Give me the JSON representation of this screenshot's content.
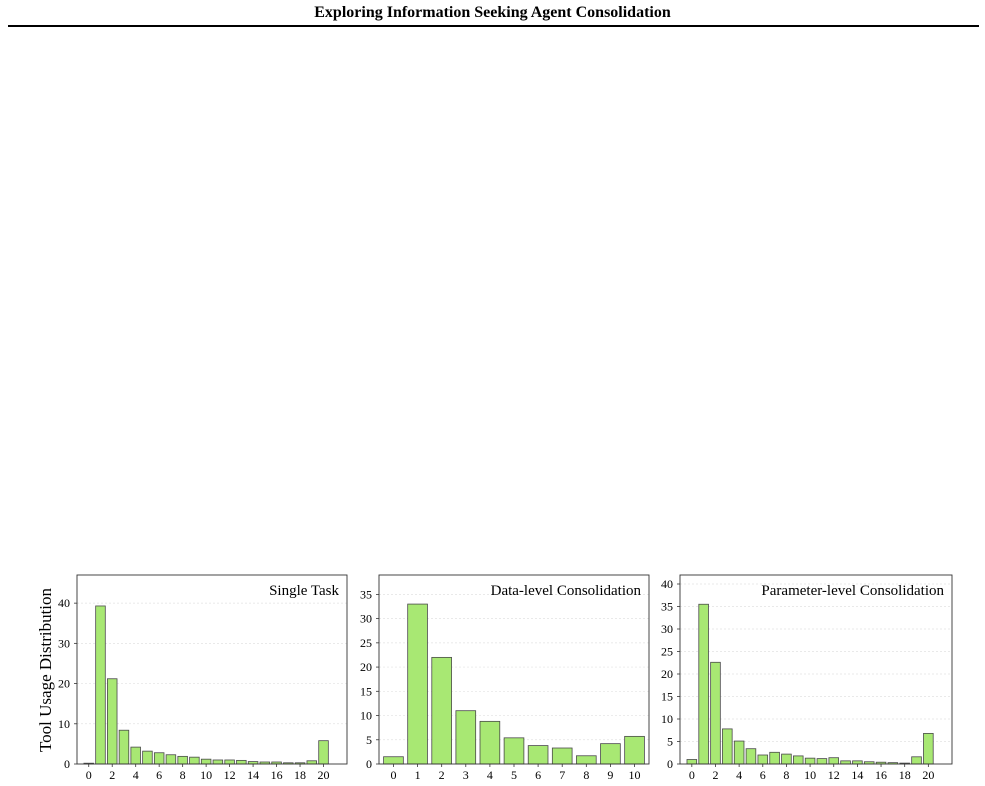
{
  "header": {
    "title": "Exploring Information Seeking Agent Consolidation"
  },
  "chart_data": [
    {
      "type": "bar",
      "title": "Single Task",
      "ylabel": "Tool Usage Distribution",
      "xlabel": "",
      "bar_color": "#a8e873",
      "bar_edge": "#4a4a4a",
      "grid": true,
      "legend": "none",
      "ylim": [
        0,
        47
      ],
      "yticks": [
        0,
        10,
        20,
        30,
        40
      ],
      "xlim": [
        -1,
        22
      ],
      "xticks": [
        0,
        2,
        4,
        6,
        8,
        10,
        12,
        14,
        16,
        18,
        20
      ],
      "categories": [
        0,
        1,
        2,
        3,
        4,
        5,
        6,
        7,
        8,
        9,
        10,
        11,
        12,
        13,
        14,
        15,
        16,
        17,
        18,
        19,
        20
      ],
      "values": [
        0.2,
        39.3,
        21.2,
        8.4,
        4.2,
        3.2,
        2.8,
        2.3,
        1.9,
        1.7,
        1.2,
        1.0,
        1.0,
        0.9,
        0.6,
        0.5,
        0.5,
        0.3,
        0.3,
        0.8,
        5.8
      ]
    },
    {
      "type": "bar",
      "title": "Data-level Consolidation",
      "ylabel": "",
      "xlabel": "",
      "bar_color": "#a8e873",
      "bar_edge": "#4a4a4a",
      "grid": true,
      "legend": "none",
      "ylim": [
        0,
        39
      ],
      "yticks": [
        0,
        5,
        10,
        15,
        20,
        25,
        30,
        35
      ],
      "xlim": [
        -0.6,
        10.6
      ],
      "xticks": [
        0,
        1,
        2,
        3,
        4,
        5,
        6,
        7,
        8,
        9,
        10
      ],
      "categories": [
        0,
        1,
        2,
        3,
        4,
        5,
        6,
        7,
        8,
        9,
        10
      ],
      "values": [
        1.5,
        33.0,
        22.0,
        11.0,
        8.8,
        5.4,
        3.8,
        3.3,
        1.7,
        4.2,
        5.7
      ]
    },
    {
      "type": "bar",
      "title": "Parameter-level Consolidation",
      "ylabel": "",
      "xlabel": "",
      "bar_color": "#a8e873",
      "bar_edge": "#4a4a4a",
      "grid": true,
      "legend": "none",
      "ylim": [
        0,
        42
      ],
      "yticks": [
        0,
        5,
        10,
        15,
        20,
        25,
        30,
        35,
        40
      ],
      "xlim": [
        -1,
        22
      ],
      "xticks": [
        0,
        2,
        4,
        6,
        8,
        10,
        12,
        14,
        16,
        18,
        20
      ],
      "categories": [
        0,
        1,
        2,
        3,
        4,
        5,
        6,
        7,
        8,
        9,
        10,
        11,
        12,
        13,
        14,
        15,
        16,
        17,
        18,
        19,
        20
      ],
      "values": [
        1.0,
        35.5,
        22.6,
        7.8,
        5.1,
        3.4,
        2.0,
        2.6,
        2.2,
        1.8,
        1.3,
        1.2,
        1.4,
        0.7,
        0.7,
        0.5,
        0.4,
        0.3,
        0.2,
        1.6,
        6.8
      ]
    }
  ]
}
